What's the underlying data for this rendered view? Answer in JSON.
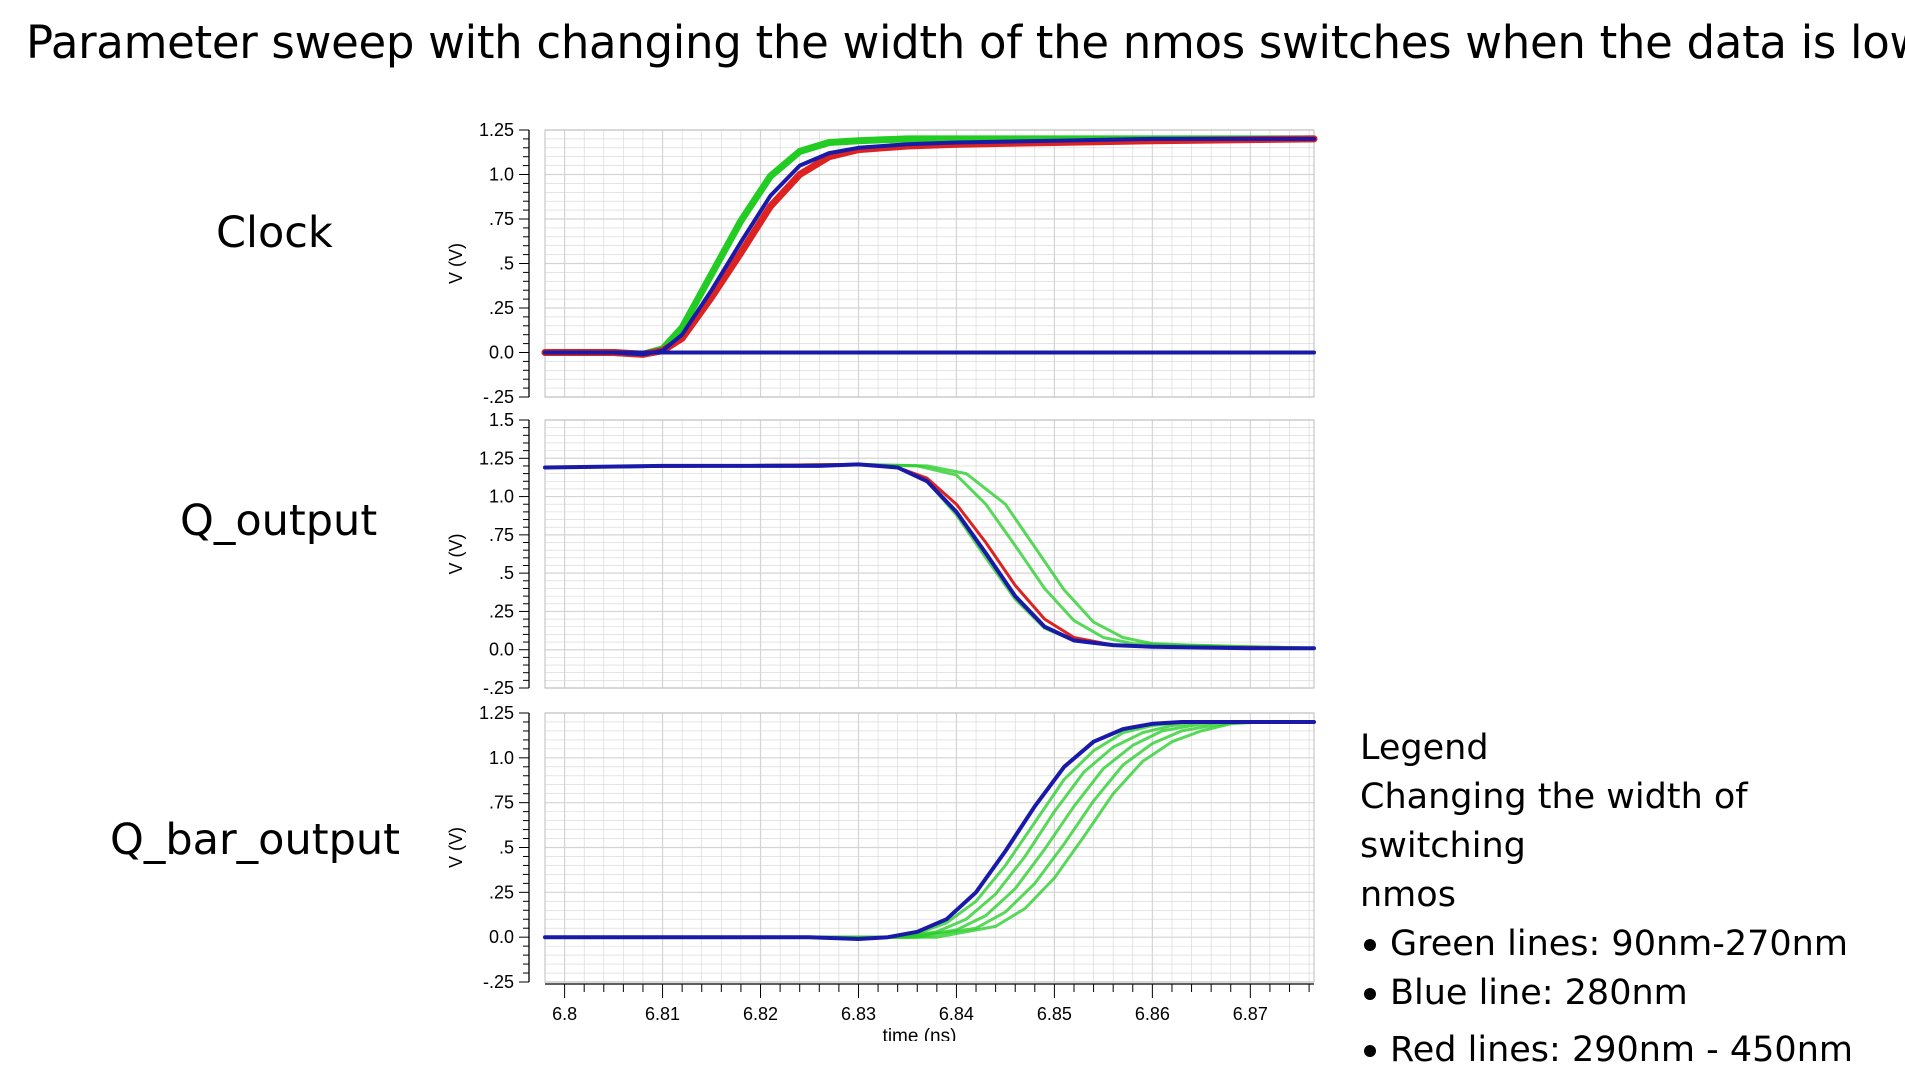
{
  "slide": {
    "title": "Parameter sweep with changing the width of the nmos switches when the data is low"
  },
  "legend": {
    "heading": "Legend",
    "description_line1": "Changing the width of switching",
    "description_line2": "nmos",
    "items": [
      {
        "label": "Green lines: 90nm-270nm",
        "color": "#22cc22"
      },
      {
        "label": "Blue line: 280nm",
        "color": "#1a1aa8"
      },
      {
        "label": "Red lines: 290nm - 450nm",
        "color": "#dd2222"
      }
    ]
  },
  "colors": {
    "green": "#22cc22",
    "blue": "#1a1aa8",
    "red": "#dd2222",
    "grid": "#d4d4d4"
  },
  "chart_data": [
    {
      "type": "line",
      "panel_label": "Clock",
      "ylabel": "V (V)",
      "xlabel": "",
      "xlim": [
        6.798,
        6.8765
      ],
      "ylim": [
        -0.25,
        1.25
      ],
      "yticks": [
        1.25,
        1.0,
        0.75,
        0.5,
        0.25,
        0.0,
        -0.25
      ],
      "ytick_labels": [
        "1.25",
        "1.0",
        ".75",
        ".5",
        ".25",
        "0.0",
        "-.25"
      ],
      "grid": true,
      "series": [
        {
          "color_key": "blue",
          "x": [
            6.798,
            6.805,
            6.808,
            6.81,
            6.812,
            6.815,
            6.818,
            6.821,
            6.824,
            6.827,
            6.83,
            6.835,
            6.84,
            6.85,
            6.86,
            6.8765
          ],
          "y": [
            0.0,
            0.0,
            -0.01,
            0.01,
            0.1,
            0.35,
            0.62,
            0.88,
            1.05,
            1.12,
            1.15,
            1.17,
            1.18,
            1.19,
            1.2,
            1.2
          ]
        },
        {
          "color_key": "green",
          "x": [
            6.798,
            6.805,
            6.808,
            6.81,
            6.812,
            6.815,
            6.818,
            6.821,
            6.824,
            6.827,
            6.83,
            6.835,
            6.84,
            6.85,
            6.8765
          ],
          "y": [
            0.0,
            0.0,
            -0.01,
            0.02,
            0.14,
            0.44,
            0.74,
            0.99,
            1.13,
            1.18,
            1.19,
            1.2,
            1.2,
            1.2,
            1.2
          ]
        },
        {
          "color_key": "red",
          "x": [
            6.798,
            6.805,
            6.808,
            6.81,
            6.812,
            6.815,
            6.818,
            6.821,
            6.824,
            6.827,
            6.83,
            6.835,
            6.84,
            6.85,
            6.86,
            6.8765
          ],
          "y": [
            0.0,
            0.0,
            -0.01,
            0.01,
            0.08,
            0.31,
            0.56,
            0.82,
            1.0,
            1.1,
            1.14,
            1.16,
            1.17,
            1.18,
            1.19,
            1.2
          ]
        },
        {
          "color_key": "blue",
          "x": [
            6.798,
            6.8765
          ],
          "y": [
            0.0,
            0.0
          ]
        }
      ]
    },
    {
      "type": "line",
      "panel_label": "Q_output",
      "ylabel": "V (V)",
      "xlabel": "",
      "xlim": [
        6.798,
        6.8765
      ],
      "ylim": [
        -0.25,
        1.5
      ],
      "yticks": [
        1.5,
        1.25,
        1.0,
        0.75,
        0.5,
        0.25,
        0.0,
        -0.25
      ],
      "ytick_labels": [
        "1.5",
        "1.25",
        "1.0",
        ".75",
        ".5",
        ".25",
        "0.0",
        "-.25"
      ],
      "grid": true,
      "series": [
        {
          "color_key": "blue",
          "x": [
            6.798,
            6.81,
            6.82,
            6.826,
            6.83,
            6.834,
            6.837,
            6.84,
            6.843,
            6.846,
            6.849,
            6.852,
            6.856,
            6.86,
            6.87,
            6.8765
          ],
          "y": [
            1.19,
            1.2,
            1.2,
            1.2,
            1.21,
            1.19,
            1.1,
            0.9,
            0.63,
            0.35,
            0.15,
            0.06,
            0.03,
            0.02,
            0.01,
            0.01
          ]
        },
        {
          "color_key": "red",
          "x": [
            6.798,
            6.83,
            6.834,
            6.837,
            6.84,
            6.843,
            6.846,
            6.849,
            6.852,
            6.856,
            6.86,
            6.8765
          ],
          "y": [
            1.19,
            1.21,
            1.19,
            1.12,
            0.95,
            0.7,
            0.42,
            0.2,
            0.08,
            0.03,
            0.02,
            0.01
          ]
        },
        {
          "color_key": "green",
          "x": [
            6.798,
            6.83,
            6.834,
            6.837,
            6.84,
            6.843,
            6.846,
            6.849,
            6.852,
            6.856,
            6.86,
            6.8765
          ],
          "y": [
            1.19,
            1.21,
            1.19,
            1.1,
            0.88,
            0.6,
            0.33,
            0.14,
            0.06,
            0.03,
            0.02,
            0.01
          ]
        },
        {
          "color_key": "green",
          "x": [
            6.798,
            6.83,
            6.836,
            6.84,
            6.843,
            6.846,
            6.849,
            6.852,
            6.855,
            6.858,
            6.862,
            6.87,
            6.8765
          ],
          "y": [
            1.19,
            1.21,
            1.2,
            1.14,
            0.95,
            0.68,
            0.4,
            0.19,
            0.08,
            0.04,
            0.03,
            0.02,
            0.01
          ]
        },
        {
          "color_key": "green",
          "x": [
            6.798,
            6.83,
            6.837,
            6.841,
            6.845,
            6.848,
            6.851,
            6.854,
            6.857,
            6.86,
            6.864,
            6.87,
            6.8765
          ],
          "y": [
            1.19,
            1.21,
            1.2,
            1.15,
            0.95,
            0.67,
            0.39,
            0.18,
            0.08,
            0.04,
            0.03,
            0.02,
            0.01
          ]
        }
      ]
    },
    {
      "type": "line",
      "panel_label": "Q_bar_output",
      "ylabel": "V (V)",
      "xlabel": "time (ns)",
      "xlim": [
        6.798,
        6.8765
      ],
      "ylim": [
        -0.25,
        1.25
      ],
      "yticks": [
        1.25,
        1.0,
        0.75,
        0.5,
        0.25,
        0.0,
        -0.25
      ],
      "ytick_labels": [
        "1.25",
        "1.0",
        ".75",
        ".5",
        ".25",
        "0.0",
        "-.25"
      ],
      "xticks": [
        6.8,
        6.81,
        6.82,
        6.83,
        6.84,
        6.85,
        6.86,
        6.87
      ],
      "xtick_labels": [
        "6.8",
        "6.81",
        "6.82",
        "6.83",
        "6.84",
        "6.85",
        "6.86",
        "6.87"
      ],
      "grid": true,
      "series": [
        {
          "color_key": "blue",
          "x": [
            6.798,
            6.81,
            6.82,
            6.825,
            6.83,
            6.833,
            6.836,
            6.839,
            6.842,
            6.845,
            6.848,
            6.851,
            6.854,
            6.857,
            6.86,
            6.863,
            6.866,
            6.87,
            6.8765
          ],
          "y": [
            0.0,
            0.0,
            0.0,
            0.0,
            -0.01,
            0.0,
            0.03,
            0.1,
            0.25,
            0.48,
            0.73,
            0.95,
            1.09,
            1.16,
            1.19,
            1.2,
            1.2,
            1.2,
            1.2
          ]
        },
        {
          "color_key": "green",
          "x": [
            6.798,
            6.833,
            6.836,
            6.839,
            6.842,
            6.845,
            6.848,
            6.851,
            6.854,
            6.857,
            6.86,
            6.863,
            6.866,
            6.87,
            6.8765
          ],
          "y": [
            0.0,
            0.0,
            0.02,
            0.08,
            0.2,
            0.4,
            0.64,
            0.88,
            1.04,
            1.14,
            1.18,
            1.2,
            1.2,
            1.2,
            1.2
          ]
        },
        {
          "color_key": "green",
          "x": [
            6.798,
            6.834,
            6.838,
            6.841,
            6.844,
            6.847,
            6.85,
            6.853,
            6.856,
            6.859,
            6.862,
            6.865,
            6.869,
            6.8765
          ],
          "y": [
            0.0,
            0.0,
            0.03,
            0.1,
            0.24,
            0.45,
            0.7,
            0.92,
            1.06,
            1.14,
            1.18,
            1.2,
            1.2,
            1.2
          ]
        },
        {
          "color_key": "green",
          "x": [
            6.798,
            6.835,
            6.84,
            6.843,
            6.846,
            6.849,
            6.852,
            6.855,
            6.858,
            6.861,
            6.864,
            6.867,
            6.871,
            6.8765
          ],
          "y": [
            0.0,
            0.0,
            0.04,
            0.12,
            0.27,
            0.49,
            0.73,
            0.94,
            1.07,
            1.15,
            1.18,
            1.2,
            1.2,
            1.2
          ]
        },
        {
          "color_key": "green",
          "x": [
            6.798,
            6.836,
            6.842,
            6.845,
            6.848,
            6.851,
            6.854,
            6.857,
            6.86,
            6.863,
            6.866,
            6.869,
            6.873,
            6.8765
          ],
          "y": [
            0.0,
            0.0,
            0.05,
            0.14,
            0.3,
            0.52,
            0.76,
            0.96,
            1.08,
            1.15,
            1.18,
            1.2,
            1.2,
            1.2
          ]
        },
        {
          "color_key": "green",
          "x": [
            6.798,
            6.838,
            6.844,
            6.847,
            6.85,
            6.853,
            6.856,
            6.859,
            6.862,
            6.865,
            6.868,
            6.871,
            6.8765
          ],
          "y": [
            0.0,
            0.0,
            0.06,
            0.16,
            0.33,
            0.56,
            0.8,
            0.98,
            1.09,
            1.15,
            1.19,
            1.2,
            1.2
          ]
        }
      ]
    }
  ]
}
